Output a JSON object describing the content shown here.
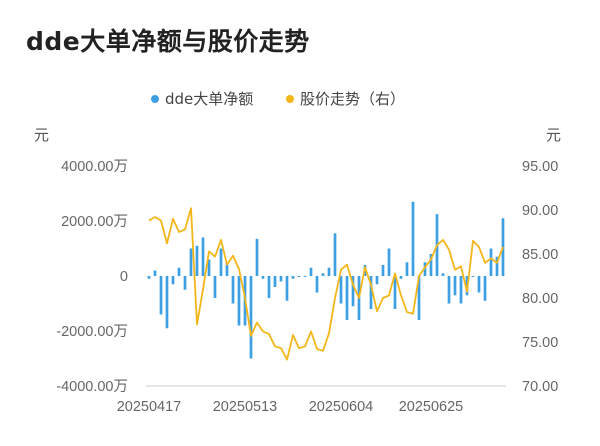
{
  "chart_data": {
    "type": "bar+line",
    "title": "dde大单净额与股价走势",
    "legend": [
      {
        "name": "dde大单净额",
        "color": "#3ea0e4"
      },
      {
        "name": "股价走势（右）",
        "color": "#f4b619"
      }
    ],
    "left_axis": {
      "unit": "元",
      "ticks": [
        "4000.00万",
        "2000.00万",
        "0",
        "-2000.00万",
        "-4000.00万"
      ],
      "values": [
        4000,
        2000,
        0,
        -2000,
        -4000
      ],
      "ylim": [
        -4000,
        4000
      ]
    },
    "right_axis": {
      "unit": "元",
      "ticks": [
        "95.00",
        "90.00",
        "85.00",
        "80.00",
        "75.00",
        "70.00"
      ],
      "values": [
        95,
        90,
        85,
        80,
        75,
        70
      ],
      "ylim": [
        70,
        95
      ]
    },
    "x_ticks": [
      {
        "label": "20250417",
        "index": 0
      },
      {
        "label": "20250513",
        "index": 16
      },
      {
        "label": "20250604",
        "index": 32
      },
      {
        "label": "20250625",
        "index": 47
      }
    ],
    "bars": [
      -100,
      200,
      -1400,
      -1900,
      -300,
      300,
      -500,
      1000,
      1100,
      1400,
      600,
      -800,
      1000,
      500,
      -1000,
      -1800,
      -1800,
      -3000,
      1350,
      -100,
      -800,
      -400,
      -200,
      -900,
      -100,
      0,
      0,
      300,
      -600,
      100,
      300,
      1550,
      -1000,
      -1600,
      -1100,
      -1600,
      400,
      -1200,
      -300,
      400,
      1000,
      -1200,
      -100,
      500,
      2700,
      -1600,
      500,
      800,
      2250,
      100,
      -1000,
      -700,
      -1000,
      -700,
      0,
      -600,
      -900,
      1000,
      700,
      2100
    ],
    "price": [
      88.8,
      89.2,
      88.8,
      86.2,
      89.0,
      87.5,
      87.8,
      90.2,
      77.0,
      81.0,
      85.3,
      84.7,
      86.6,
      83.8,
      84.8,
      83.3,
      80.0,
      75.7,
      77.2,
      76.2,
      75.9,
      74.5,
      74.3,
      73.0,
      75.8,
      74.3,
      74.5,
      76.2,
      74.2,
      74.0,
      76.0,
      80.0,
      83.2,
      83.8,
      81.5,
      80.0,
      83.5,
      81.5,
      78.5,
      80.0,
      80.3,
      82.8,
      80.3,
      78.4,
      78.2,
      82.5,
      83.5,
      84.4,
      86.0,
      86.6,
      85.5,
      83.2,
      83.6,
      80.7,
      86.5,
      85.8,
      84.0,
      84.5,
      84.0,
      85.8
    ]
  }
}
